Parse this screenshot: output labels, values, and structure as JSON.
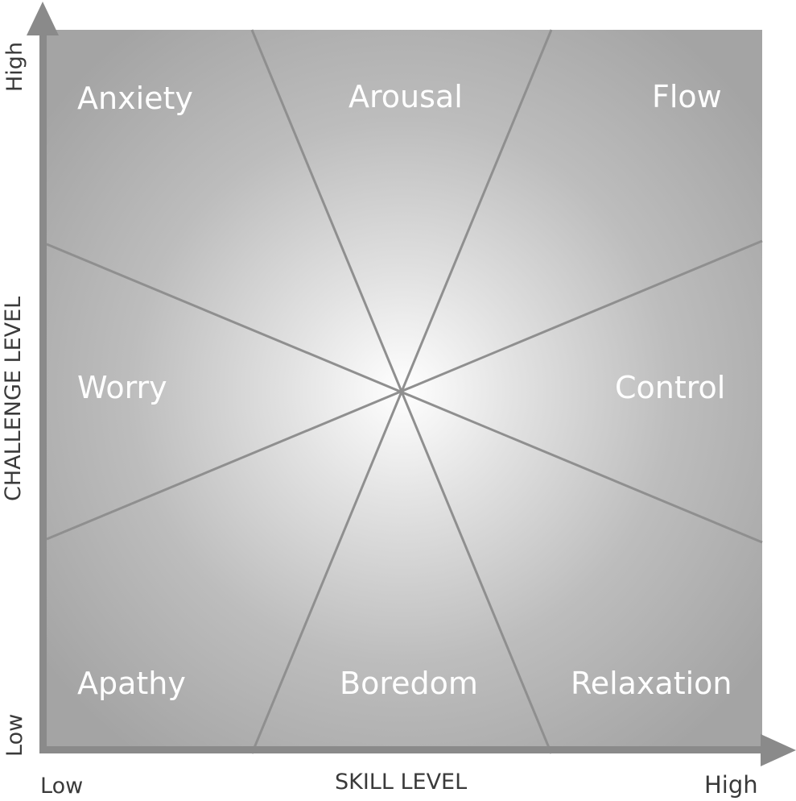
{
  "diagram": {
    "x_axis": {
      "label": "SKILL LEVEL",
      "low": "Low",
      "high": "High"
    },
    "y_axis": {
      "label": "CHALLENGE LEVEL",
      "low": "Low",
      "high": "High"
    },
    "regions": {
      "anxiety": "Anxiety",
      "arousal": "Arousal",
      "flow": "Flow",
      "worry": "Worry",
      "control": "Control",
      "apathy": "Apathy",
      "boredom": "Boredom",
      "relaxation": "Relaxation"
    },
    "colors": {
      "center": "#ffffff",
      "edge": "#a6a6a6",
      "divider": "#8f8f8f",
      "axis": "#8a8a8a",
      "label": "#ffffff"
    }
  }
}
